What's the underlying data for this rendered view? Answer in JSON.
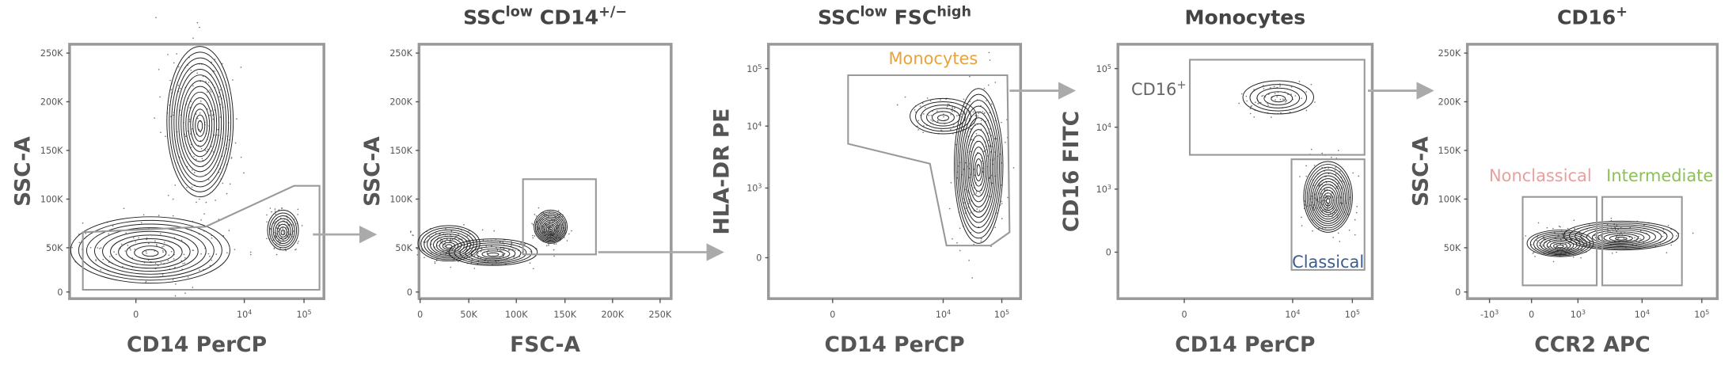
{
  "panels": [
    {
      "y_label": "SSC-A",
      "x_label": "CD14 PerCP",
      "y_ticks": [
        "250K",
        "200K",
        "150K",
        "100K",
        "50K",
        "0"
      ],
      "x_ticks": [
        "0",
        [
          {
            "text": "10"
          },
          {
            "text": "4",
            "sup": true
          }
        ],
        [
          {
            "text": "10"
          },
          {
            "text": "5",
            "sup": true
          }
        ]
      ]
    },
    {
      "title": [
        {
          "text": "SSC"
        },
        {
          "text": "low",
          "sup": true
        },
        {
          "text": " CD14"
        },
        {
          "text": "+/−",
          "sup": true
        }
      ],
      "y_label": "SSC-A",
      "x_label": "FSC-A",
      "y_ticks": [
        "250K",
        "200K",
        "150K",
        "100K",
        "50K",
        "0"
      ],
      "x_ticks": [
        "0",
        "50K",
        "100K",
        "150K",
        "200K",
        "250K"
      ]
    },
    {
      "title": [
        {
          "text": "SSC"
        },
        {
          "text": "low",
          "sup": true
        },
        {
          "text": " FSC"
        },
        {
          "text": "high",
          "sup": true
        }
      ],
      "y_label": "HLA-DR PE",
      "x_label": "CD14 PerCP",
      "y_ticks": [
        [
          {
            "text": "10"
          },
          {
            "text": "5",
            "sup": true
          }
        ],
        [
          {
            "text": "10"
          },
          {
            "text": "4",
            "sup": true
          }
        ],
        [
          {
            "text": "10"
          },
          {
            "text": "3",
            "sup": true
          }
        ],
        "0"
      ],
      "x_ticks": [
        "0",
        [
          {
            "text": "10"
          },
          {
            "text": "4",
            "sup": true
          }
        ],
        [
          {
            "text": "10"
          },
          {
            "text": "5",
            "sup": true
          }
        ]
      ],
      "gates": [
        {
          "label": [
            {
              "text": "Monocytes"
            }
          ],
          "color": "#e8a33d"
        }
      ]
    },
    {
      "title": [
        {
          "text": "Monocytes"
        }
      ],
      "y_label": "CD16 FITC",
      "x_label": "CD14 PerCP",
      "y_ticks": [
        [
          {
            "text": "10"
          },
          {
            "text": "5",
            "sup": true
          }
        ],
        [
          {
            "text": "10"
          },
          {
            "text": "4",
            "sup": true
          }
        ],
        [
          {
            "text": "10"
          },
          {
            "text": "3",
            "sup": true
          }
        ],
        "0"
      ],
      "x_ticks": [
        "0",
        [
          {
            "text": "10"
          },
          {
            "text": "4",
            "sup": true
          }
        ],
        [
          {
            "text": "10"
          },
          {
            "text": "5",
            "sup": true
          }
        ]
      ],
      "gates": [
        {
          "label": [
            {
              "text": "CD16"
            },
            {
              "text": "+",
              "sup": true
            }
          ],
          "color": "#666666"
        },
        {
          "label": [
            {
              "text": "Classical"
            }
          ],
          "color": "#3a5d8f"
        }
      ]
    },
    {
      "title": [
        {
          "text": "CD16"
        },
        {
          "text": "+",
          "sup": true
        }
      ],
      "y_label": "SSC-A",
      "x_label": "CCR2 APC",
      "y_ticks": [
        "250K",
        "200K",
        "150K",
        "100K",
        "50K",
        "0"
      ],
      "x_ticks": [
        [
          {
            "text": "-10"
          },
          {
            "text": "3",
            "sup": true
          }
        ],
        "0",
        [
          {
            "text": "10"
          },
          {
            "text": "3",
            "sup": true
          }
        ],
        [
          {
            "text": "10"
          },
          {
            "text": "4",
            "sup": true
          }
        ],
        [
          {
            "text": "10"
          },
          {
            "text": "5",
            "sup": true
          }
        ]
      ],
      "gates": [
        {
          "label": [
            {
              "text": "Nonclassical"
            }
          ],
          "color": "#e6a0a0"
        },
        {
          "label": [
            {
              "text": "Intermediate"
            }
          ],
          "color": "#8cbf5a"
        }
      ]
    }
  ]
}
